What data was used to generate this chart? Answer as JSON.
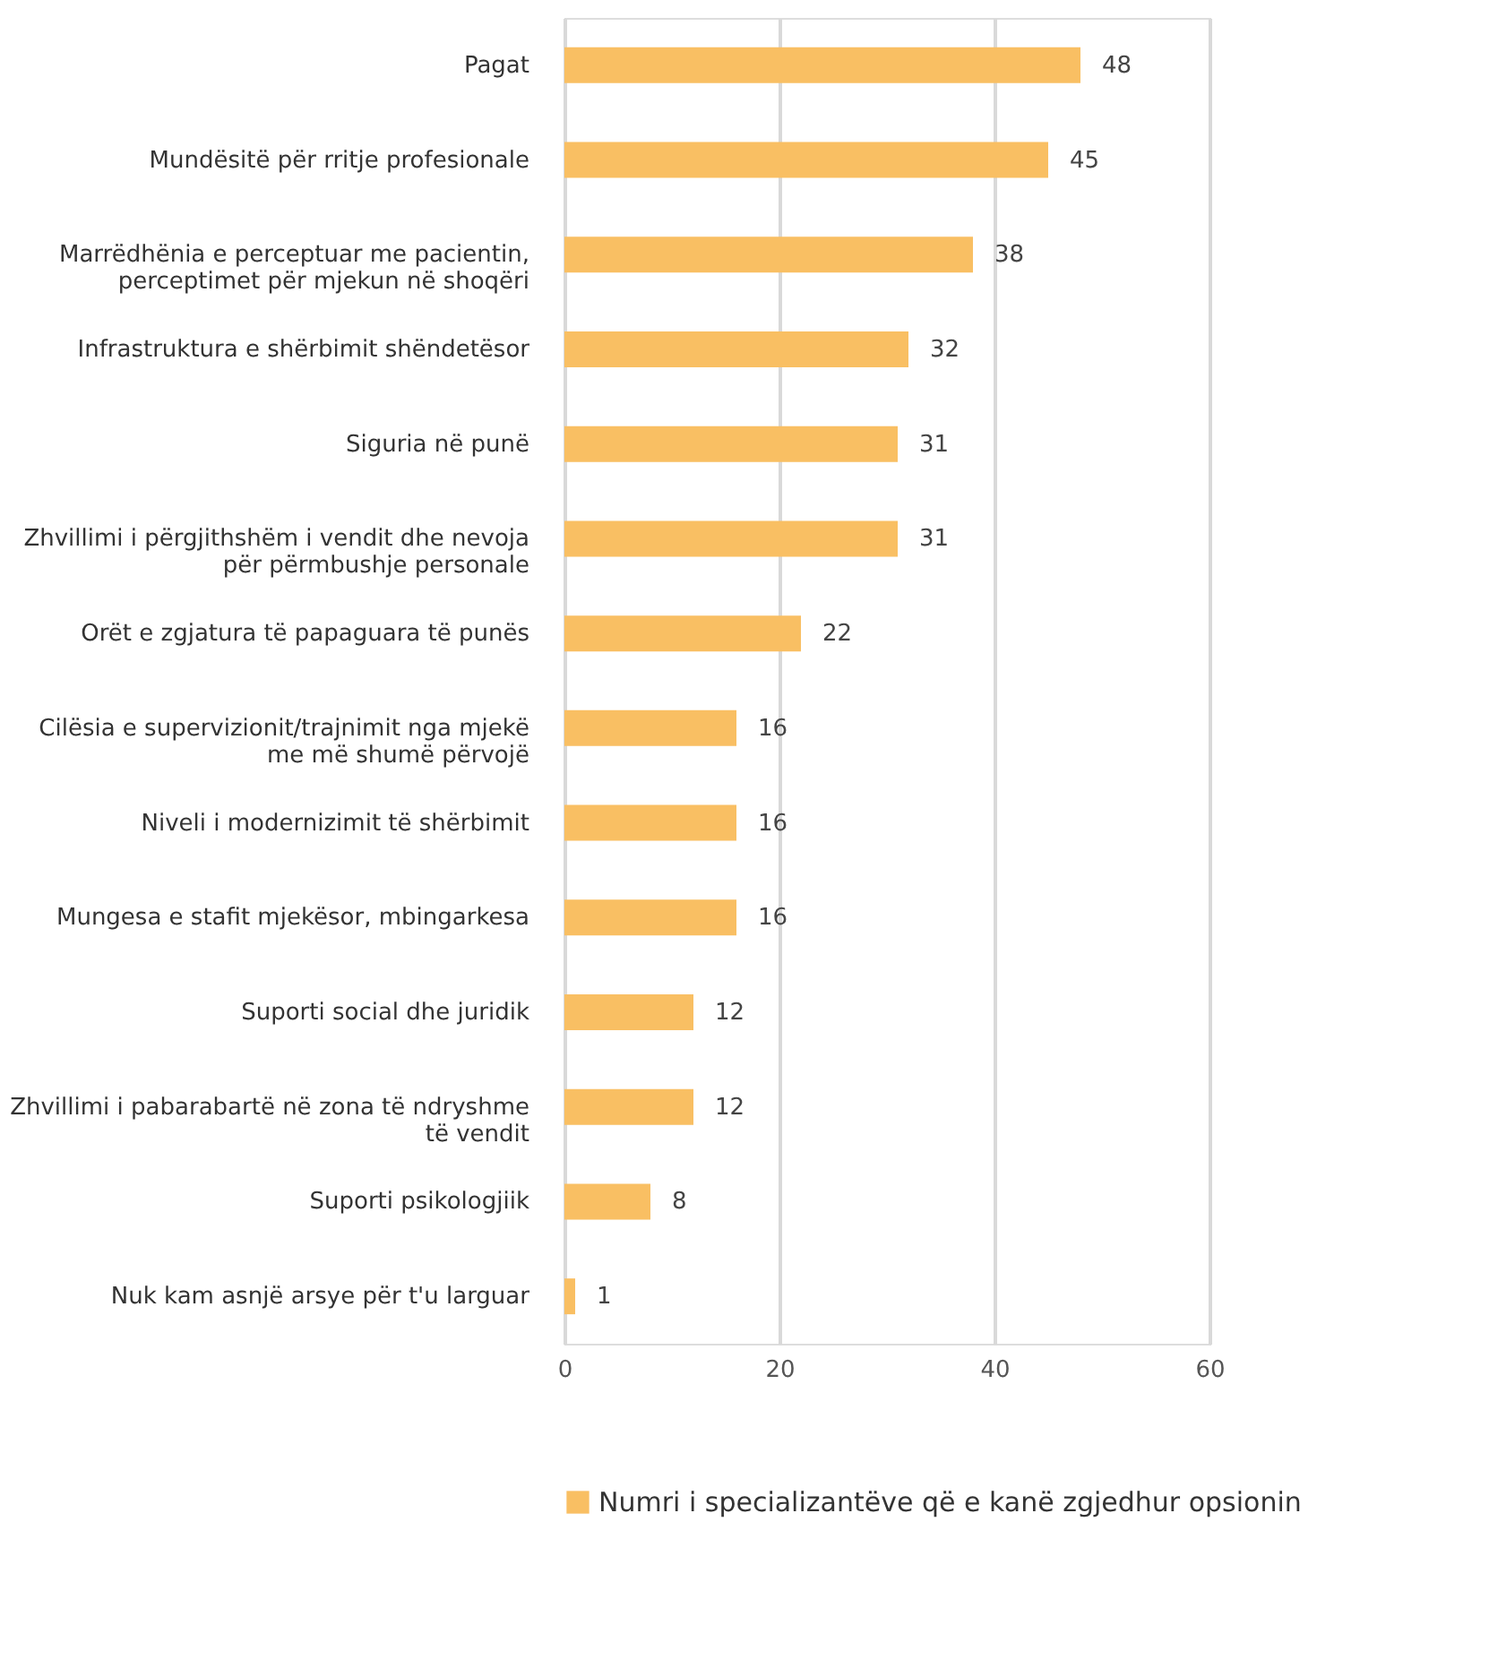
{
  "chart_data": {
    "type": "bar",
    "orientation": "horizontal",
    "categories": [
      "Pagat",
      "Mundësitë për rritje profesionale",
      "Marrëdhënia e perceptuar me pacientin, perceptimet për mjekun në shoqëri",
      "Infrastruktura e shërbimit shëndetësor",
      "Siguria në punë",
      "Zhvillimi i përgjithshëm i vendit dhe nevoja për përmbushje personale",
      "Orët e zgjatura të papaguara të punës",
      "Cilësia e supervizionit/trajnimit nga mjekë me më shumë përvojë",
      "Niveli i modernizimit të shërbimit",
      "Mungesa e stafit mjekësor, mbingarkesa",
      "Suporti social dhe juridik",
      "Zhvillimi i pabarabartë në zona të ndryshme të vendit",
      "Suporti psikologjiik",
      "Nuk kam asnjë arsye për t'u larguar"
    ],
    "series": [
      {
        "name": "Numri i specializantëve që e kanë zgjedhur opsionin",
        "color": "#f9bf63",
        "values": [
          48,
          45,
          38,
          32,
          31,
          31,
          22,
          16,
          16,
          16,
          12,
          12,
          8,
          1
        ]
      }
    ],
    "xlim": [
      0,
      60
    ],
    "xticks": [
      0,
      20,
      40,
      60
    ],
    "grid": "x",
    "legend": "bottom",
    "data_labels": true
  }
}
